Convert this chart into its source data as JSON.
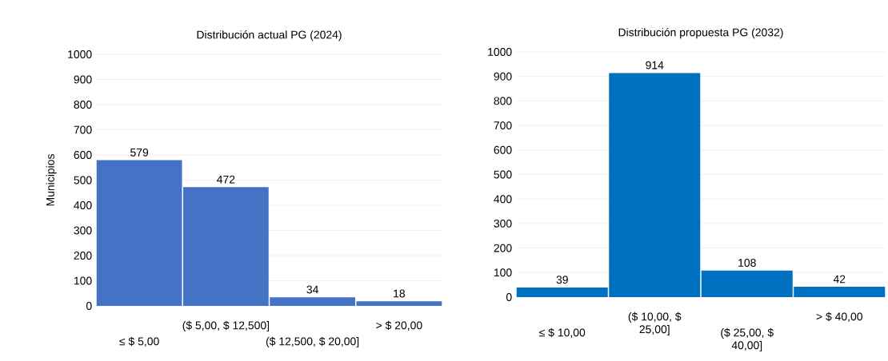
{
  "chart_data": [
    {
      "type": "bar",
      "title": "Distribución actual PG (2024)",
      "ylabel": "Municipios",
      "categories": [
        "≤ $ 5,00",
        "($ 5,00, $ 12,500]",
        "($ 12,500, $ 20,00]",
        "> $ 20,00"
      ],
      "values": [
        579,
        472,
        34,
        18
      ],
      "color": "#4472c4",
      "ylim": [
        0,
        1000
      ],
      "yticks": [
        0,
        100,
        200,
        300,
        400,
        500,
        600,
        700,
        800,
        900,
        1000
      ],
      "grid": "y",
      "data_labels": true
    },
    {
      "type": "bar",
      "title": "Distribución propuesta  PG (2032)",
      "categories": [
        "≤ $ 10,00",
        "($ 10,00, $ 25,00]",
        "($ 25,00, $ 40,00]",
        "> $ 40,00"
      ],
      "values": [
        39,
        914,
        108,
        42
      ],
      "color": "#0070c0",
      "ylim": [
        0,
        1000
      ],
      "yticks": [
        0,
        100,
        200,
        300,
        400,
        500,
        600,
        700,
        800,
        900,
        1000
      ],
      "grid": "y",
      "data_labels": true
    }
  ]
}
